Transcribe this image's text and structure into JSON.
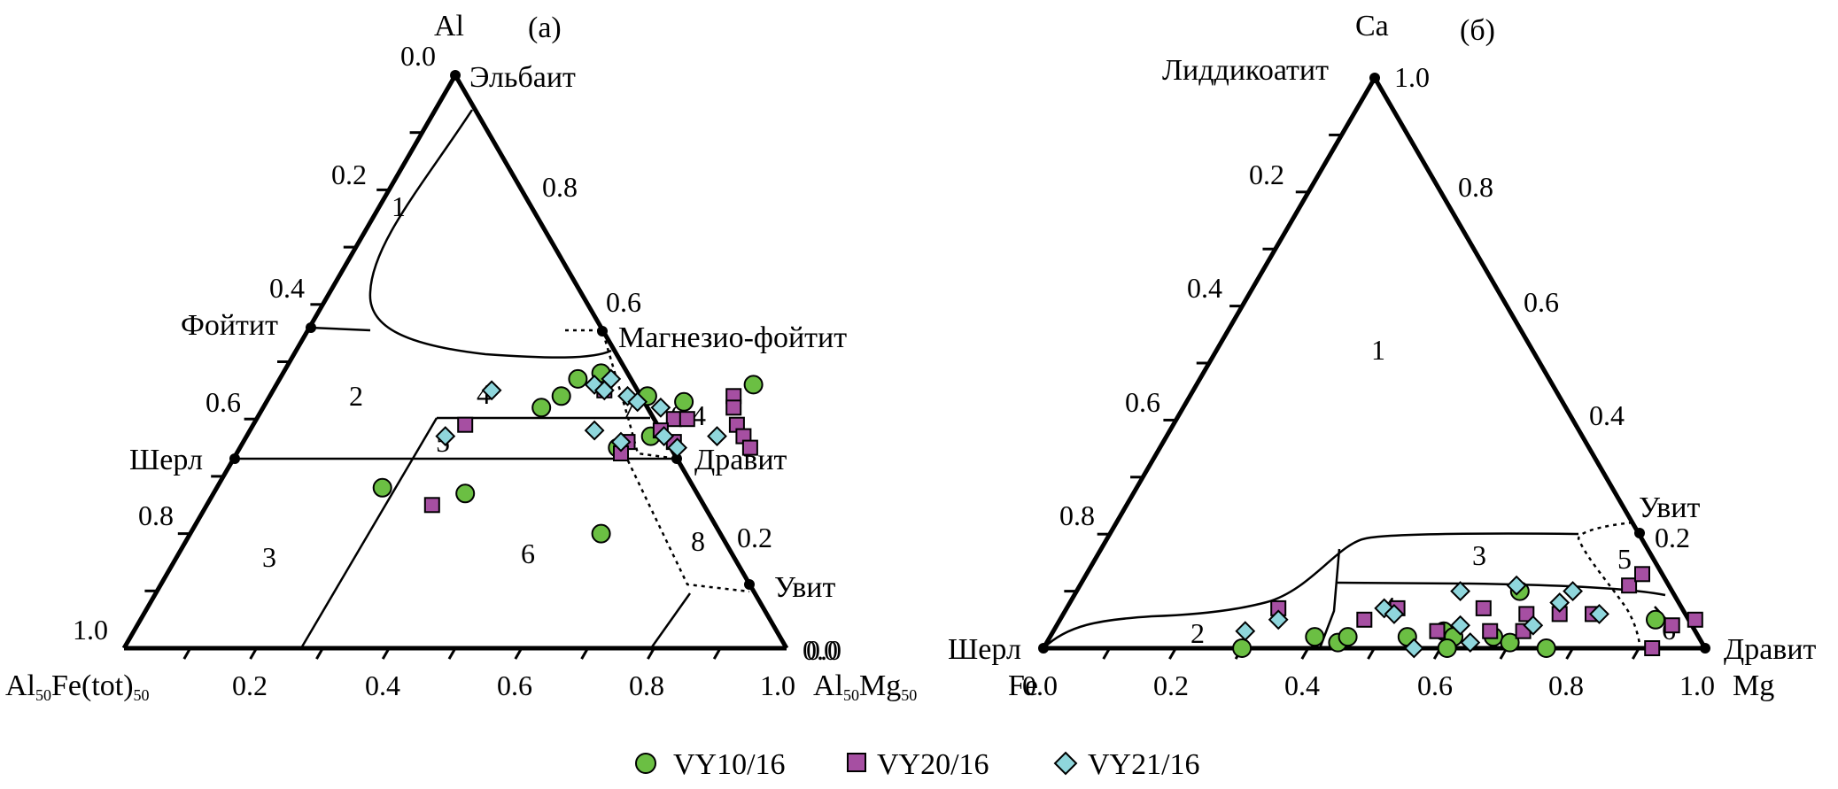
{
  "colors": {
    "axis": "#000000",
    "VY10_16": "#6bbf43",
    "VY20_16": "#a64fa2",
    "VY21_16": "#8fd6dc"
  },
  "legend": [
    {
      "name": "VY10/16",
      "marker": "circle",
      "color": "#6bbf43"
    },
    {
      "name": "VY20/16",
      "marker": "square",
      "color": "#a64fa2"
    },
    {
      "name": "VY21/16",
      "marker": "diamond",
      "color": "#8fd6dc"
    }
  ],
  "chart_data": [
    {
      "type": "scatter",
      "subtype": "ternary",
      "panel_label": "(a)",
      "apex_top": "Al",
      "left_label": "Al50Fe(tot)50",
      "right_label": "Al50Mg50",
      "bottom_ticks": [
        "0.2",
        "0.4",
        "0.6",
        "0.8",
        "1.0"
      ],
      "left_ticks": [
        "0.0",
        "0.2",
        "0.4",
        "0.6",
        "0.8",
        "1.0"
      ],
      "right_ticks": [
        "0.8",
        "0.6",
        "0.4",
        "0.2",
        "0.0",
        "0.0"
      ],
      "end_members": [
        "Эльбаит",
        "Фойтит",
        "Магнезио-фойтит",
        "Шерл",
        "Дравит",
        "Увит"
      ],
      "field_labels": [
        "1",
        "2",
        "3",
        "4",
        "5",
        "6",
        "7",
        "8"
      ],
      "coordinate_note": "points as [x, y] with x = Mg fraction along base, y = Al fraction toward apex",
      "series": [
        {
          "name": "VY10/16",
          "points": [
            [
              0.25,
              0.28
            ],
            [
              0.45,
              0.47
            ],
            [
              0.48,
              0.48
            ],
            [
              0.44,
              0.44
            ],
            [
              0.42,
              0.42
            ],
            [
              0.57,
              0.44
            ],
            [
              0.63,
              0.43
            ],
            [
              0.72,
              0.46
            ],
            [
              0.57,
              0.35
            ],
            [
              0.61,
              0.37
            ],
            [
              0.38,
              0.27
            ],
            [
              0.62,
              0.2
            ]
          ]
        },
        {
          "name": "VY20/16",
          "points": [
            [
              0.32,
              0.39
            ],
            [
              0.5,
              0.45
            ],
            [
              0.63,
              0.4
            ],
            [
              0.65,
              0.4
            ],
            [
              0.7,
              0.44
            ],
            [
              0.71,
              0.42
            ],
            [
              0.65,
              0.36
            ],
            [
              0.62,
              0.38
            ],
            [
              0.73,
              0.39
            ],
            [
              0.75,
              0.37
            ],
            [
              0.77,
              0.35
            ],
            [
              0.58,
              0.36
            ],
            [
              0.58,
              0.34
            ],
            [
              0.34,
              0.25
            ]
          ]
        },
        {
          "name": "VY21/16",
          "points": [
            [
              0.33,
              0.45
            ],
            [
              0.48,
              0.46
            ],
            [
              0.5,
              0.47
            ],
            [
              0.5,
              0.45
            ],
            [
              0.54,
              0.44
            ],
            [
              0.56,
              0.43
            ],
            [
              0.6,
              0.42
            ],
            [
              0.52,
              0.38
            ],
            [
              0.57,
              0.36
            ],
            [
              0.63,
              0.37
            ],
            [
              0.66,
              0.35
            ],
            [
              0.71,
              0.37
            ],
            [
              0.3,
              0.37
            ]
          ]
        }
      ]
    },
    {
      "type": "scatter",
      "subtype": "ternary",
      "panel_label": "(б)",
      "apex_top": "Ca",
      "left_label": "Fe",
      "right_label": "Mg",
      "bottom_ticks": [
        "0.0",
        "0.2",
        "0.4",
        "0.6",
        "0.8",
        "1.0"
      ],
      "left_ticks": [
        "0.2",
        "0.4",
        "0.6",
        "0.8"
      ],
      "right_ticks": [
        "1.0",
        "0.8",
        "0.6",
        "0.4",
        "0.2"
      ],
      "end_members": [
        "Лиддикоатит",
        "Шерл",
        "Дравит",
        "Увит"
      ],
      "field_labels": [
        "1",
        "2",
        "3",
        "4",
        "5",
        "6"
      ],
      "coordinate_note": "points as [x, y] with x = Mg fraction along base, y = Ca fraction toward apex",
      "series": [
        {
          "name": "VY10/16",
          "points": [
            [
              0.3,
              0.0
            ],
            [
              0.4,
              0.02
            ],
            [
              0.44,
              0.01
            ],
            [
              0.45,
              0.02
            ],
            [
              0.54,
              0.02
            ],
            [
              0.59,
              0.03
            ],
            [
              0.61,
              0.02
            ],
            [
              0.67,
              0.02
            ],
            [
              0.7,
              0.01
            ],
            [
              0.76,
              0.0
            ],
            [
              0.61,
              0.0
            ],
            [
              0.67,
              0.1
            ],
            [
              0.9,
              0.05
            ]
          ]
        },
        {
          "name": "VY20/16",
          "points": [
            [
              0.32,
              0.07
            ],
            [
              0.46,
              0.05
            ],
            [
              0.5,
              0.07
            ],
            [
              0.58,
              0.03
            ],
            [
              0.63,
              0.07
            ],
            [
              0.66,
              0.03
            ],
            [
              0.7,
              0.06
            ],
            [
              0.71,
              0.03
            ],
            [
              0.75,
              0.06
            ],
            [
              0.8,
              0.06
            ],
            [
              0.83,
              0.11
            ],
            [
              0.84,
              0.13
            ],
            [
              0.93,
              0.04
            ],
            [
              0.96,
              0.05
            ],
            [
              0.92,
              0.0
            ]
          ]
        },
        {
          "name": "VY21/16",
          "points": [
            [
              0.29,
              0.03
            ],
            [
              0.33,
              0.05
            ],
            [
              0.48,
              0.07
            ],
            [
              0.5,
              0.06
            ],
            [
              0.58,
              0.1
            ],
            [
              0.61,
              0.04
            ],
            [
              0.64,
              0.01
            ],
            [
              0.66,
              0.11
            ],
            [
              0.72,
              0.04
            ],
            [
              0.74,
              0.08
            ],
            [
              0.75,
              0.1
            ],
            [
              0.81,
              0.06
            ],
            [
              0.56,
              0.0
            ]
          ]
        }
      ]
    }
  ]
}
